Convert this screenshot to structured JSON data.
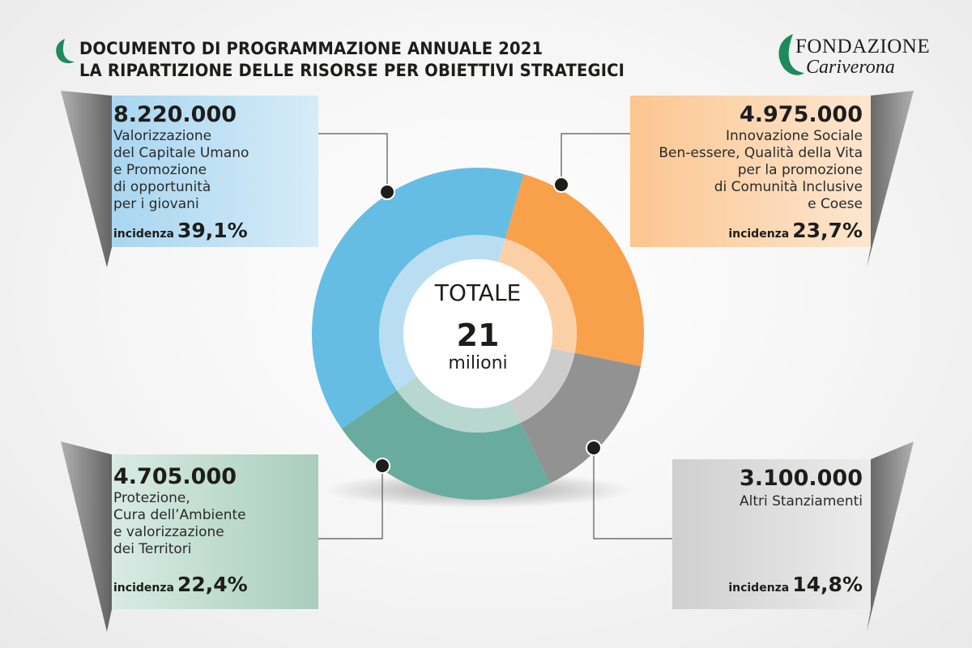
{
  "header": {
    "title_line1": "DOCUMENTO DI PROGRAMMAZIONE ANNUALE 2021",
    "title_line2": "LA RIPARTIZIONE DELLE RISORSE PER OBIETTIVI STRATEGICI",
    "accent_color": "#1f8a5c"
  },
  "logo": {
    "line1": "FONDAZIONE",
    "line2": "Cariverona",
    "mark_color": "#1f8a5c"
  },
  "center": {
    "label": "TOTALE",
    "value": "21",
    "unit": "milioni"
  },
  "cards": [
    {
      "amount": "8.220.000",
      "desc": [
        "Valorizzazione",
        "del Capitale Umano",
        "e Promozione",
        "di opportunità",
        "per i giovani"
      ],
      "inc_label": "incidenza",
      "inc_value": "39,1%",
      "color": "#bfe0f4"
    },
    {
      "amount": "4.975.000",
      "desc": [
        "Innovazione Sociale",
        "Ben-essere, Qualità della Vita",
        "per la promozione",
        "di Comunità Inclusive",
        "e Coese"
      ],
      "inc_label": "incidenza",
      "inc_value": "23,7%",
      "color": "#fbd3ad"
    },
    {
      "amount": "4.705.000",
      "desc": [
        "Protezione,",
        "Cura dell’Ambiente",
        "e valorizzazione",
        "dei Territori"
      ],
      "inc_label": "incidenza",
      "inc_value": "22,4%",
      "color": "#c6e0d6"
    },
    {
      "amount": "3.100.000",
      "desc": [
        "Altri Stanziamenti"
      ],
      "inc_label": "incidenza",
      "inc_value": "14,8%",
      "color": "#d9d9d9"
    }
  ],
  "chart_data": {
    "type": "pie",
    "title": "LA RIPARTIZIONE DELLE RISORSE PER OBIETTIVI STRATEGICI",
    "total_label": "TOTALE 21 milioni",
    "unit": "EUR",
    "slices": [
      {
        "category": "Valorizzazione del Capitale Umano e Promozione di opportunità per i giovani",
        "value": 8220000,
        "percent": 39.1,
        "color": "#65bde3"
      },
      {
        "category": "Innovazione Sociale Ben-essere, Qualità della Vita per la promozione di Comunità Inclusive e Coese",
        "value": 4975000,
        "percent": 23.7,
        "color": "#f9a04b"
      },
      {
        "category": "Altri Stanziamenti",
        "value": 3100000,
        "percent": 14.8,
        "color": "#929292"
      },
      {
        "category": "Protezione, Cura dell’Ambiente e valorizzazione dei Territori",
        "value": 4705000,
        "percent": 22.4,
        "color": "#69ab9f"
      }
    ],
    "inner_colors": [
      "#b9def2",
      "#fcd0a6",
      "#cdcdcd",
      "#b7d7cf"
    ],
    "legend": "none"
  }
}
